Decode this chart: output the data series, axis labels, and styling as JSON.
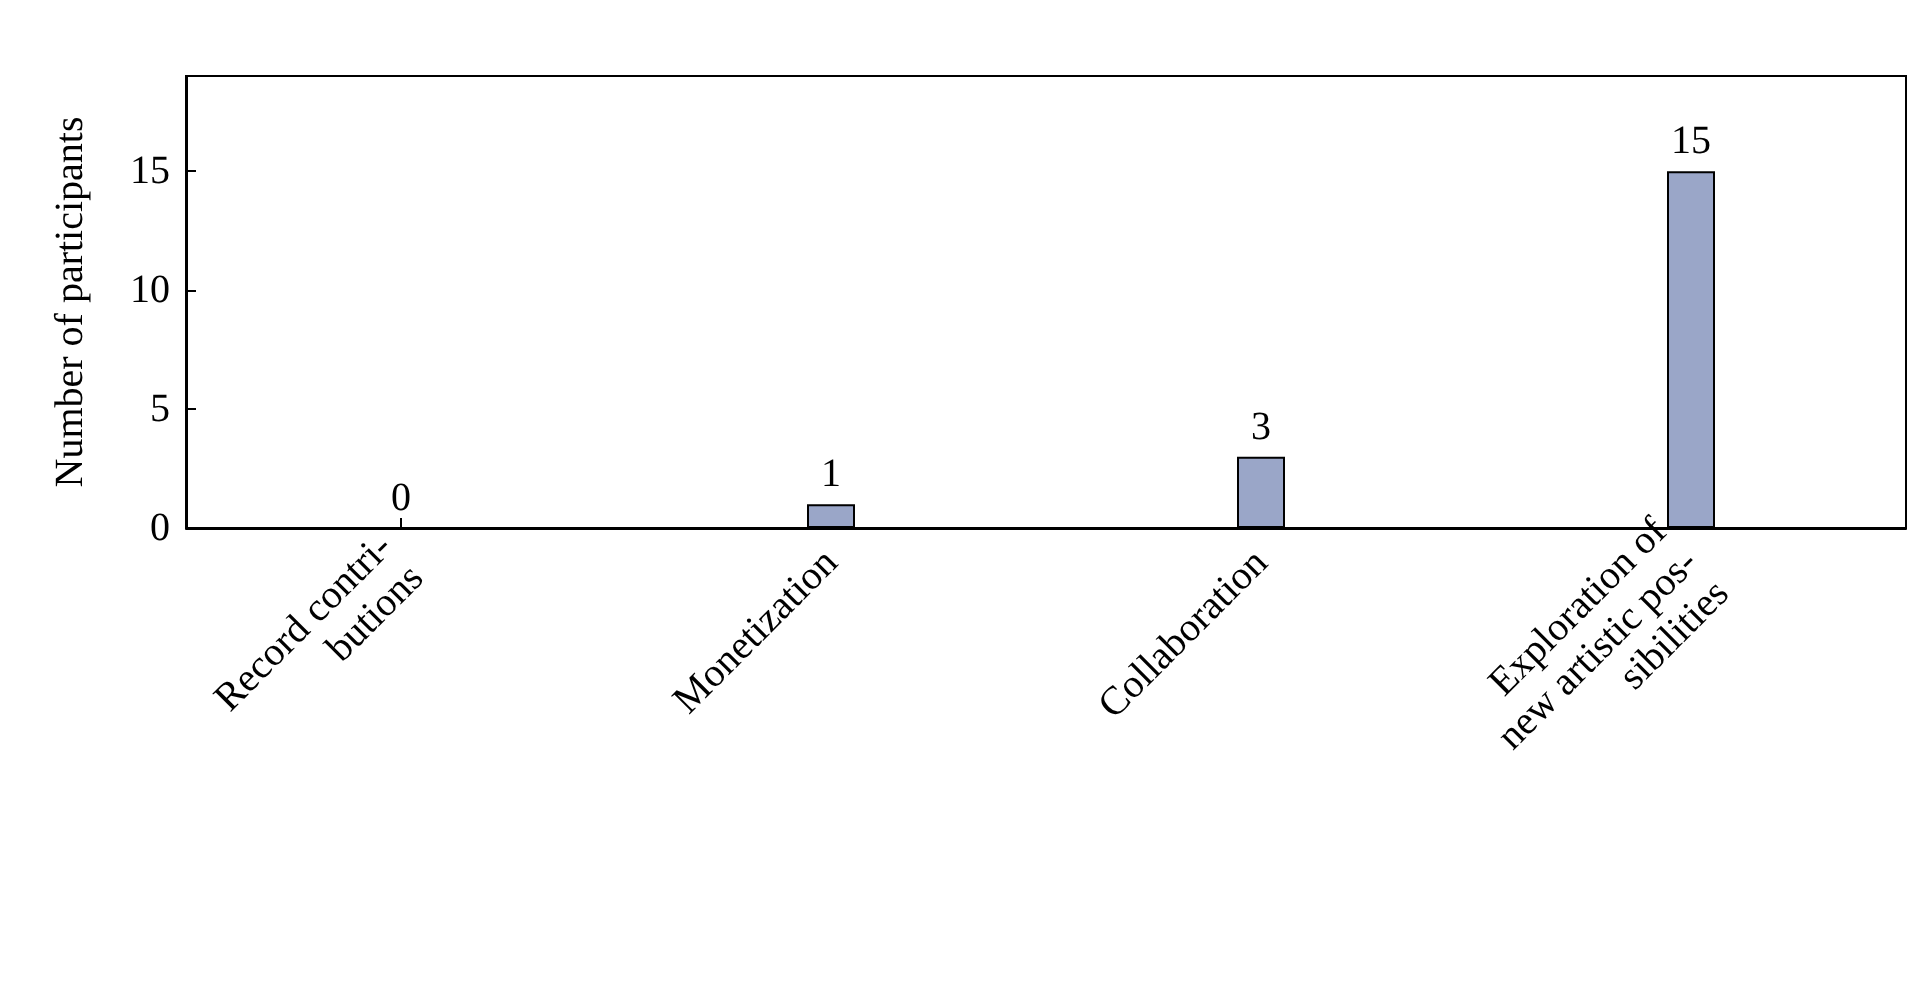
{
  "chart_data": {
    "type": "bar",
    "ylabel": "Number of participants",
    "categories": [
      "Record contri-\nbutions",
      "Monetization",
      "Collaboration",
      "Exploration of\nnew artistic pos-\nsibilities"
    ],
    "values": [
      0,
      1,
      3,
      15
    ],
    "color": "#9aa6c8",
    "ylim": [
      0,
      19
    ],
    "yticks": [
      0,
      5,
      10,
      15
    ],
    "data_labels": true,
    "grid": false
  }
}
